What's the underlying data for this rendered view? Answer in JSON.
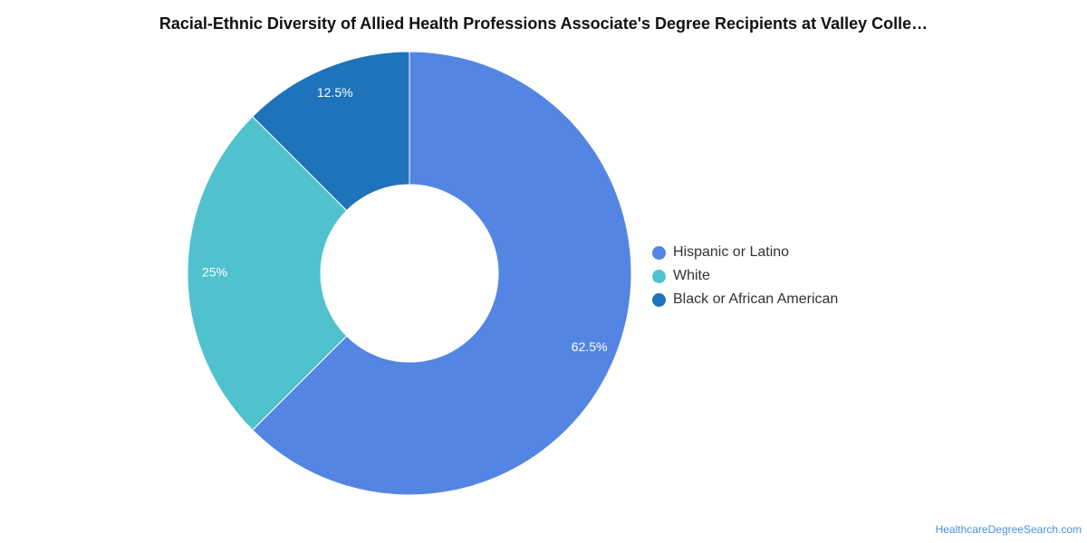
{
  "chart_data": {
    "type": "pie",
    "title": "Racial-Ethnic Diversity of Allied Health Professions Associate's Degree Recipients at Valley Colle…",
    "donut": true,
    "start_angle_deg": 0,
    "direction": "clockwise",
    "legend_position": "right",
    "slices": [
      {
        "label": "Hispanic or Latino",
        "value": 62.5,
        "value_label": "62.5%",
        "color": "#5485E2"
      },
      {
        "label": "White",
        "value": 25,
        "value_label": "25%",
        "color": "#50C2CE"
      },
      {
        "label": "Black or African American",
        "value": 12.5,
        "value_label": "12.5%",
        "color": "#1E73BA"
      }
    ]
  },
  "credit": "HealthcareDegreeSearch.com"
}
